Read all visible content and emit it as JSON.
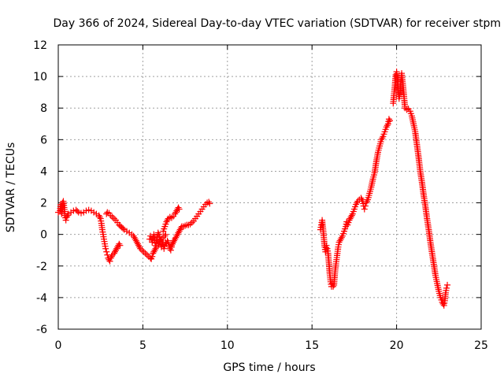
{
  "chart_data": {
    "type": "scatter",
    "title": "Day 366 of 2024, Sidereal Day-to-day VTEC variation (SDTVAR) for receiver stpm",
    "xlabel": "GPS time / hours",
    "ylabel": "SDTVAR / TECUs",
    "xlim": [
      0,
      25
    ],
    "ylim": [
      -6,
      12
    ],
    "xticks": [
      0,
      5,
      10,
      15,
      20,
      25
    ],
    "yticks": [
      -6,
      -4,
      -2,
      0,
      2,
      4,
      6,
      8,
      10,
      12
    ],
    "grid": true,
    "marker": "+",
    "color": "#ff0000",
    "series": [
      {
        "name": "SDTVAR",
        "segments": [
          [
            [
              0.0,
              1.4
            ],
            [
              0.1,
              1.5
            ],
            [
              0.15,
              1.9
            ],
            [
              0.2,
              1.3
            ],
            [
              0.25,
              2.0
            ],
            [
              0.3,
              2.1
            ],
            [
              0.35,
              1.7
            ],
            [
              0.4,
              1.2
            ],
            [
              0.45,
              0.9
            ],
            [
              0.5,
              1.1
            ],
            [
              0.6,
              1.3
            ],
            [
              0.75,
              1.4
            ],
            [
              0.9,
              1.5
            ],
            [
              1.05,
              1.55
            ],
            [
              1.2,
              1.4
            ],
            [
              1.35,
              1.35
            ],
            [
              1.5,
              1.4
            ],
            [
              1.65,
              1.5
            ],
            [
              1.8,
              1.55
            ],
            [
              1.95,
              1.5
            ],
            [
              2.1,
              1.4
            ],
            [
              2.25,
              1.3
            ],
            [
              2.4,
              1.2
            ],
            [
              2.5,
              1.0
            ],
            [
              2.55,
              0.7
            ],
            [
              2.6,
              0.3
            ],
            [
              2.65,
              0.0
            ],
            [
              2.7,
              -0.3
            ],
            [
              2.75,
              -0.6
            ],
            [
              2.8,
              -0.9
            ],
            [
              2.85,
              -1.1
            ],
            [
              2.9,
              -1.3
            ],
            [
              2.95,
              -1.5
            ],
            [
              3.0,
              -1.6
            ],
            [
              3.05,
              -1.7
            ],
            [
              3.1,
              -1.5
            ],
            [
              3.2,
              -1.3
            ],
            [
              3.3,
              -1.2
            ],
            [
              3.4,
              -1.0
            ],
            [
              3.5,
              -0.8
            ],
            [
              3.6,
              -0.6
            ],
            [
              3.65,
              -0.7
            ]
          ],
          [
            [
              2.85,
              1.3
            ],
            [
              2.9,
              1.4
            ],
            [
              3.0,
              1.35
            ],
            [
              3.1,
              1.2
            ],
            [
              3.2,
              1.1
            ],
            [
              3.3,
              1.0
            ],
            [
              3.4,
              0.9
            ],
            [
              3.5,
              0.75
            ],
            [
              3.6,
              0.6
            ],
            [
              3.75,
              0.45
            ],
            [
              3.9,
              0.3
            ],
            [
              4.05,
              0.2
            ],
            [
              4.2,
              0.1
            ],
            [
              4.35,
              0.0
            ],
            [
              4.45,
              -0.1
            ],
            [
              4.55,
              -0.3
            ],
            [
              4.65,
              -0.5
            ],
            [
              4.75,
              -0.7
            ],
            [
              4.85,
              -0.9
            ],
            [
              4.95,
              -1.0
            ],
            [
              5.05,
              -1.1
            ],
            [
              5.15,
              -1.2
            ],
            [
              5.25,
              -1.3
            ],
            [
              5.35,
              -1.4
            ],
            [
              5.45,
              -1.5
            ],
            [
              5.5,
              -1.55
            ],
            [
              5.55,
              -1.4
            ],
            [
              5.6,
              -1.2
            ],
            [
              5.7,
              -1.0
            ],
            [
              5.8,
              -0.8
            ],
            [
              5.9,
              -0.7
            ],
            [
              6.0,
              -0.5
            ],
            [
              6.1,
              -0.3
            ],
            [
              6.2,
              -0.2
            ],
            [
              6.3,
              -0.1
            ],
            [
              6.35,
              0.0
            ]
          ],
          [
            [
              5.4,
              -0.3
            ],
            [
              5.45,
              -0.1
            ],
            [
              5.5,
              -0.3
            ],
            [
              5.55,
              -0.5
            ],
            [
              5.6,
              -0.2
            ],
            [
              5.65,
              0.0
            ],
            [
              5.7,
              -0.4
            ],
            [
              5.75,
              -0.7
            ],
            [
              5.8,
              -0.5
            ],
            [
              5.85,
              -0.2
            ],
            [
              5.9,
              0.1
            ],
            [
              5.95,
              0.0
            ],
            [
              6.0,
              -0.3
            ],
            [
              6.05,
              -0.6
            ],
            [
              6.1,
              -0.8
            ],
            [
              6.15,
              -0.5
            ],
            [
              6.2,
              -0.6
            ],
            [
              6.25,
              -0.9
            ],
            [
              6.3,
              -0.7
            ],
            [
              6.35,
              -0.5
            ],
            [
              6.4,
              -0.6
            ],
            [
              6.45,
              -0.4
            ],
            [
              6.5,
              -0.5
            ],
            [
              6.55,
              -0.7
            ],
            [
              6.6,
              -0.8
            ],
            [
              6.65,
              -1.0
            ],
            [
              6.7,
              -0.8
            ],
            [
              6.75,
              -0.6
            ],
            [
              6.8,
              -0.4
            ]
          ],
          [
            [
              6.2,
              0.2
            ],
            [
              6.3,
              0.5
            ],
            [
              6.4,
              0.8
            ],
            [
              6.5,
              1.0
            ],
            [
              6.6,
              1.1
            ],
            [
              6.7,
              1.05
            ],
            [
              6.8,
              1.15
            ],
            [
              6.9,
              1.3
            ],
            [
              7.0,
              1.5
            ],
            [
              7.05,
              1.6
            ],
            [
              7.1,
              1.7
            ],
            [
              7.15,
              1.6
            ]
          ],
          [
            [
              6.6,
              -0.9
            ],
            [
              6.7,
              -0.7
            ],
            [
              6.8,
              -0.5
            ],
            [
              6.9,
              -0.3
            ],
            [
              7.0,
              -0.1
            ],
            [
              7.1,
              0.1
            ],
            [
              7.2,
              0.3
            ],
            [
              7.3,
              0.5
            ],
            [
              7.4,
              0.5
            ],
            [
              7.5,
              0.55
            ],
            [
              7.6,
              0.6
            ],
            [
              7.7,
              0.6
            ],
            [
              7.8,
              0.65
            ],
            [
              7.9,
              0.75
            ],
            [
              8.0,
              0.85
            ],
            [
              8.1,
              1.0
            ],
            [
              8.2,
              1.15
            ],
            [
              8.3,
              1.3
            ],
            [
              8.4,
              1.45
            ],
            [
              8.5,
              1.6
            ],
            [
              8.6,
              1.75
            ],
            [
              8.7,
              1.9
            ],
            [
              8.8,
              2.0
            ],
            [
              8.9,
              2.05
            ],
            [
              8.95,
              1.95
            ]
          ],
          [
            [
              15.5,
              0.3
            ],
            [
              15.55,
              0.6
            ],
            [
              15.6,
              0.9
            ],
            [
              15.65,
              0.4
            ],
            [
              15.7,
              -0.2
            ],
            [
              15.75,
              -0.8
            ],
            [
              15.8,
              -1.1
            ],
            [
              15.85,
              -0.7
            ],
            [
              15.9,
              -0.9
            ],
            [
              15.95,
              -1.2
            ],
            [
              16.0,
              -1.8
            ],
            [
              16.05,
              -2.5
            ],
            [
              16.1,
              -3.0
            ],
            [
              16.15,
              -3.3
            ],
            [
              16.2,
              -3.1
            ],
            [
              16.25,
              -3.3
            ],
            [
              16.3,
              -3.2
            ],
            [
              16.35,
              -2.5
            ],
            [
              16.4,
              -2.0
            ],
            [
              16.45,
              -1.6
            ],
            [
              16.5,
              -1.2
            ],
            [
              16.55,
              -0.8
            ],
            [
              16.6,
              -0.5
            ],
            [
              16.7,
              -0.3
            ],
            [
              16.8,
              -0.1
            ],
            [
              16.9,
              0.2
            ],
            [
              17.0,
              0.5
            ],
            [
              17.05,
              0.8
            ],
            [
              17.1,
              0.6
            ],
            [
              17.2,
              0.9
            ],
            [
              17.3,
              1.1
            ],
            [
              17.4,
              1.3
            ],
            [
              17.5,
              1.6
            ],
            [
              17.6,
              1.9
            ],
            [
              17.7,
              2.1
            ],
            [
              17.8,
              2.2
            ],
            [
              17.9,
              2.3
            ],
            [
              18.0,
              2.1
            ],
            [
              18.05,
              1.8
            ],
            [
              18.1,
              1.6
            ],
            [
              18.15,
              1.8
            ],
            [
              18.2,
              2.0
            ],
            [
              18.3,
              2.2
            ],
            [
              18.4,
              2.6
            ],
            [
              18.5,
              3.0
            ],
            [
              18.6,
              3.5
            ],
            [
              18.7,
              3.9
            ],
            [
              18.8,
              4.6
            ],
            [
              18.9,
              5.2
            ],
            [
              19.0,
              5.6
            ],
            [
              19.1,
              6.0
            ],
            [
              19.2,
              6.2
            ],
            [
              19.3,
              6.5
            ],
            [
              19.4,
              6.8
            ],
            [
              19.5,
              7.0
            ],
            [
              19.55,
              7.3
            ],
            [
              19.6,
              7.2
            ]
          ],
          [
            [
              19.8,
              8.3
            ],
            [
              19.85,
              8.9
            ],
            [
              19.9,
              9.4
            ],
            [
              19.95,
              10.1
            ],
            [
              20.0,
              10.3
            ],
            [
              20.05,
              9.8
            ],
            [
              20.1,
              9.1
            ],
            [
              20.15,
              8.6
            ],
            [
              20.2,
              8.9
            ],
            [
              20.25,
              9.6
            ],
            [
              20.3,
              10.2
            ],
            [
              20.35,
              9.7
            ],
            [
              20.4,
              9.2
            ],
            [
              20.45,
              8.6
            ],
            [
              20.5,
              8.0
            ],
            [
              20.6,
              7.9
            ],
            [
              20.7,
              7.95
            ],
            [
              20.8,
              7.8
            ],
            [
              20.9,
              7.5
            ],
            [
              21.0,
              7.0
            ],
            [
              21.1,
              6.5
            ],
            [
              21.2,
              5.7
            ],
            [
              21.3,
              4.9
            ],
            [
              21.4,
              4.0
            ],
            [
              21.5,
              3.3
            ],
            [
              21.6,
              2.5
            ],
            [
              21.7,
              1.8
            ],
            [
              21.8,
              1.0
            ],
            [
              21.9,
              0.3
            ],
            [
              22.0,
              -0.5
            ],
            [
              22.1,
              -1.2
            ],
            [
              22.2,
              -1.9
            ],
            [
              22.3,
              -2.6
            ],
            [
              22.4,
              -3.1
            ],
            [
              22.5,
              -3.6
            ],
            [
              22.6,
              -4.0
            ],
            [
              22.7,
              -4.3
            ],
            [
              22.8,
              -4.5
            ],
            [
              22.85,
              -4.2
            ],
            [
              22.9,
              -3.7
            ],
            [
              22.95,
              -3.4
            ],
            [
              23.0,
              -3.2
            ]
          ]
        ]
      }
    ]
  }
}
